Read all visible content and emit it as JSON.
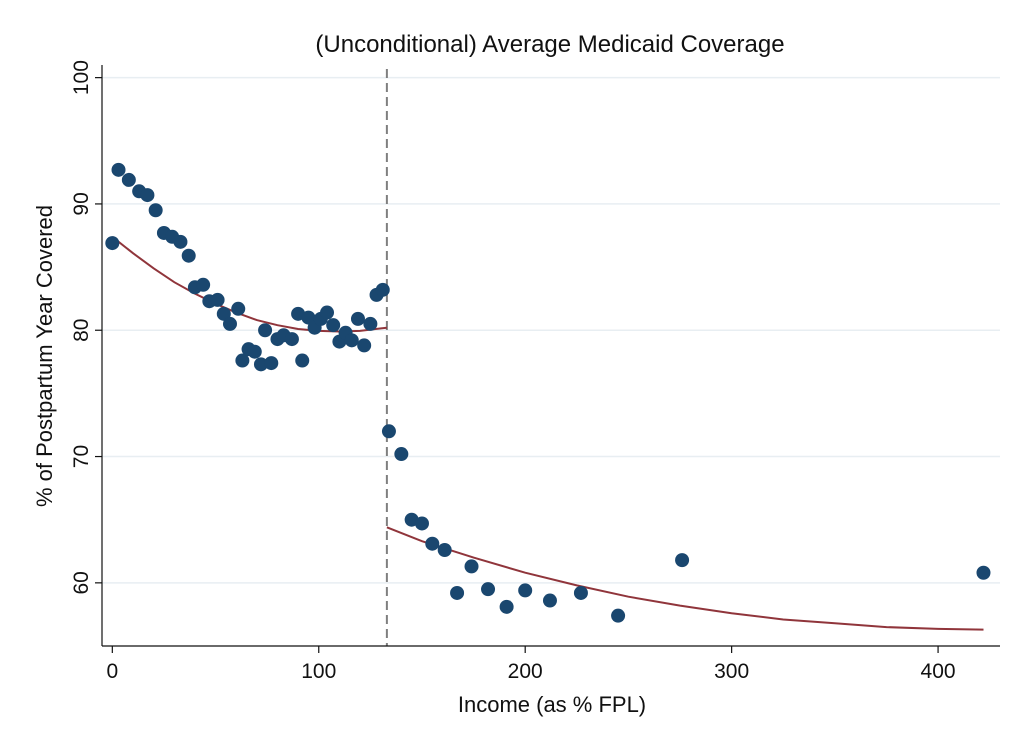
{
  "chart_data": {
    "type": "scatter",
    "title": "(Unconditional) Average Medicaid Coverage",
    "xlabel": "Income (as % FPL)",
    "ylabel": "% of Postpartum Year Covered",
    "xlim": [
      -5,
      430
    ],
    "ylim": [
      55,
      101
    ],
    "x_ticks": [
      0,
      100,
      200,
      300,
      400
    ],
    "y_ticks": [
      60,
      70,
      80,
      90,
      100
    ],
    "grid": "horizontal",
    "cutoff_x": 133,
    "colors": {
      "points": "#1a476f",
      "fit": "#90353b",
      "cutoff": "#7f7f7f",
      "grid": "#e8eef2",
      "background": "#ffffff"
    },
    "points": [
      {
        "x": 0,
        "y": 86.9
      },
      {
        "x": 3,
        "y": 92.7
      },
      {
        "x": 8,
        "y": 91.9
      },
      {
        "x": 13,
        "y": 91.0
      },
      {
        "x": 17,
        "y": 90.7
      },
      {
        "x": 21,
        "y": 89.5
      },
      {
        "x": 25,
        "y": 87.7
      },
      {
        "x": 29,
        "y": 87.4
      },
      {
        "x": 33,
        "y": 87.0
      },
      {
        "x": 37,
        "y": 85.9
      },
      {
        "x": 40,
        "y": 83.4
      },
      {
        "x": 44,
        "y": 83.6
      },
      {
        "x": 47,
        "y": 82.3
      },
      {
        "x": 51,
        "y": 82.4
      },
      {
        "x": 54,
        "y": 81.3
      },
      {
        "x": 57,
        "y": 80.5
      },
      {
        "x": 61,
        "y": 81.7
      },
      {
        "x": 63,
        "y": 77.6
      },
      {
        "x": 66,
        "y": 78.5
      },
      {
        "x": 69,
        "y": 78.3
      },
      {
        "x": 72,
        "y": 77.3
      },
      {
        "x": 74,
        "y": 80.0
      },
      {
        "x": 77,
        "y": 77.4
      },
      {
        "x": 80,
        "y": 79.3
      },
      {
        "x": 83,
        "y": 79.6
      },
      {
        "x": 87,
        "y": 79.3
      },
      {
        "x": 90,
        "y": 81.3
      },
      {
        "x": 92,
        "y": 77.6
      },
      {
        "x": 95,
        "y": 81.0
      },
      {
        "x": 98,
        "y": 80.2
      },
      {
        "x": 101,
        "y": 80.9
      },
      {
        "x": 104,
        "y": 81.4
      },
      {
        "x": 107,
        "y": 80.4
      },
      {
        "x": 110,
        "y": 79.1
      },
      {
        "x": 113,
        "y": 79.8
      },
      {
        "x": 116,
        "y": 79.2
      },
      {
        "x": 119,
        "y": 80.9
      },
      {
        "x": 122,
        "y": 78.8
      },
      {
        "x": 125,
        "y": 80.5
      },
      {
        "x": 128,
        "y": 82.8
      },
      {
        "x": 131,
        "y": 83.2
      },
      {
        "x": 134,
        "y": 72.0
      },
      {
        "x": 140,
        "y": 70.2
      },
      {
        "x": 145,
        "y": 65.0
      },
      {
        "x": 150,
        "y": 64.7
      },
      {
        "x": 155,
        "y": 63.1
      },
      {
        "x": 161,
        "y": 62.6
      },
      {
        "x": 167,
        "y": 59.2
      },
      {
        "x": 174,
        "y": 61.3
      },
      {
        "x": 182,
        "y": 59.5
      },
      {
        "x": 191,
        "y": 58.1
      },
      {
        "x": 200,
        "y": 59.4
      },
      {
        "x": 212,
        "y": 58.6
      },
      {
        "x": 227,
        "y": 59.2
      },
      {
        "x": 245,
        "y": 57.4
      },
      {
        "x": 276,
        "y": 61.8
      },
      {
        "x": 422,
        "y": 60.8
      }
    ],
    "fit_left": [
      {
        "x": 0,
        "y": 87.4
      },
      {
        "x": 10,
        "y": 86.1
      },
      {
        "x": 20,
        "y": 84.9
      },
      {
        "x": 30,
        "y": 83.8
      },
      {
        "x": 40,
        "y": 82.9
      },
      {
        "x": 50,
        "y": 82.1
      },
      {
        "x": 60,
        "y": 81.4
      },
      {
        "x": 70,
        "y": 80.8
      },
      {
        "x": 80,
        "y": 80.4
      },
      {
        "x": 90,
        "y": 80.1
      },
      {
        "x": 100,
        "y": 79.95
      },
      {
        "x": 110,
        "y": 79.9
      },
      {
        "x": 120,
        "y": 79.95
      },
      {
        "x": 133,
        "y": 80.2
      }
    ],
    "fit_right": [
      {
        "x": 133,
        "y": 64.4
      },
      {
        "x": 150,
        "y": 63.3
      },
      {
        "x": 175,
        "y": 62.0
      },
      {
        "x": 200,
        "y": 60.8
      },
      {
        "x": 225,
        "y": 59.8
      },
      {
        "x": 250,
        "y": 58.9
      },
      {
        "x": 275,
        "y": 58.2
      },
      {
        "x": 300,
        "y": 57.6
      },
      {
        "x": 325,
        "y": 57.1
      },
      {
        "x": 350,
        "y": 56.8
      },
      {
        "x": 375,
        "y": 56.5
      },
      {
        "x": 400,
        "y": 56.35
      },
      {
        "x": 422,
        "y": 56.3
      }
    ]
  }
}
